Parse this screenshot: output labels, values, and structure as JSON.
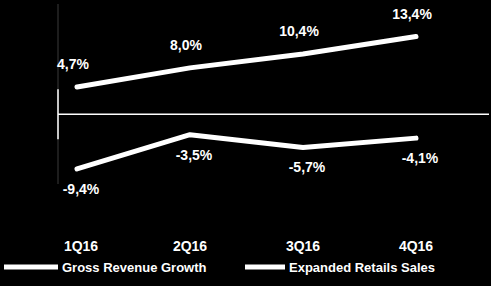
{
  "chart_data": {
    "type": "line",
    "categories": [
      "1Q16",
      "2Q16",
      "3Q16",
      "4Q16"
    ],
    "series": [
      {
        "name": "Gross Revenue Growth",
        "color": "#ffffff",
        "values": [
          4.7,
          8.0,
          10.4,
          13.4
        ],
        "value_labels": [
          "4,7%",
          "8,0%",
          "10,4%",
          "13,4%"
        ]
      },
      {
        "name": "Expanded Retails Sales",
        "color": "#ffffff",
        "values": [
          -9.4,
          -3.5,
          -5.7,
          -4.1
        ],
        "value_labels": [
          "-9,4%",
          "-3,5%",
          "-5,7%",
          "-4,1%"
        ]
      }
    ],
    "ylim": [
      -12,
      19
    ],
    "yticks": [
      0
    ],
    "tick_labels": "x",
    "data_labels": true,
    "legend": "bottom",
    "grid": false
  }
}
